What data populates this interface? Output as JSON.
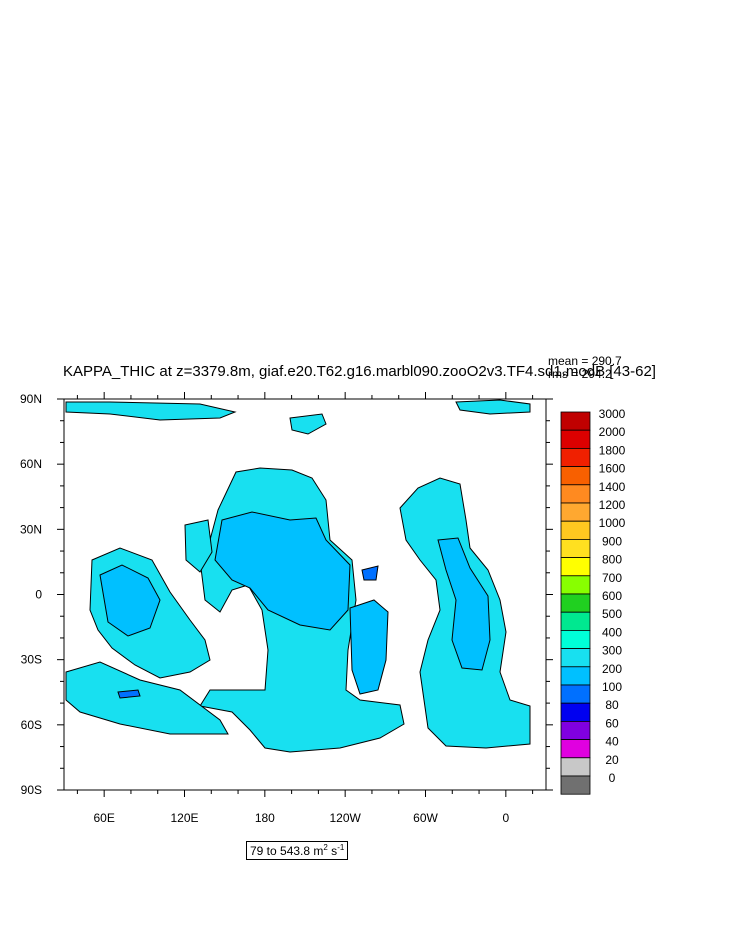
{
  "chart_data": {
    "type": "heatmap",
    "title": "KAPPA_THIC at z=3379.8m, giaf.e20.T62.g16.marbl090.zooO2v3.TF4.sd1.modB [43-62]",
    "stats": {
      "mean": "mean = 290.7",
      "rms": "rms = 294.2"
    },
    "range_label": {
      "text": "79 to 543.8 m",
      "unit_sup_1": "2",
      "mid": " s",
      "unit_sup_2": "-1"
    },
    "x_ticks": [
      "60E",
      "120E",
      "180",
      "120W",
      "60W",
      "0"
    ],
    "y_ticks": [
      "90N",
      "60N",
      "30N",
      "0",
      "30S",
      "60S",
      "90S"
    ],
    "xlim": [
      30,
      390
    ],
    "ylim": [
      -90,
      90
    ],
    "colorbar": {
      "levels": [
        "3000",
        "2000",
        "1800",
        "1600",
        "1400",
        "1200",
        "1000",
        "900",
        "800",
        "700",
        "600",
        "500",
        "400",
        "300",
        "200",
        "100",
        "80",
        "60",
        "40",
        "20",
        "0"
      ],
      "colors": [
        "#c00000",
        "#dc0000",
        "#f02000",
        "#f86000",
        "#ff8a20",
        "#ffa830",
        "#ffc820",
        "#ffe020",
        "#ffff00",
        "#88ff00",
        "#20d020",
        "#00e890",
        "#00ffd8",
        "#18e0f0",
        "#00c0ff",
        "#0070ff",
        "#0000f0",
        "#8000e0",
        "#e000e0",
        "#c8c8c8",
        "#707070"
      ]
    },
    "field": {
      "dominant_value_range": "300-400",
      "colors": {
        "cyan_300_400": "#18e0f0",
        "lightblue_200_300": "#00c0ff",
        "blue_100_200": "#0070ff",
        "land": "#ffffff",
        "coast": "#000000"
      }
    }
  }
}
